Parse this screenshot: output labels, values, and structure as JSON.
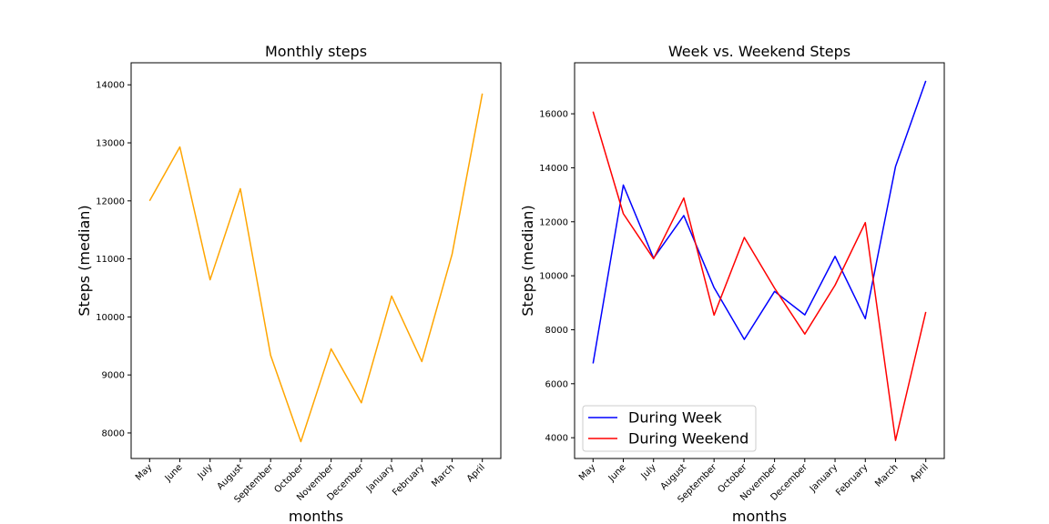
{
  "chart_data": [
    {
      "type": "line",
      "title": "Monthly steps",
      "xlabel": "months",
      "ylabel": "Steps (median)",
      "categories": [
        "May",
        "June",
        "July",
        "August",
        "September",
        "October",
        "November",
        "December",
        "January",
        "February",
        "March",
        "April"
      ],
      "series": [
        {
          "color": "#ffa500",
          "values": [
            12000,
            12930,
            10640,
            12210,
            9340,
            7850,
            9450,
            8520,
            10360,
            9230,
            11080,
            13850
          ]
        }
      ],
      "ylim": [
        7560,
        14380
      ],
      "yticks": [
        8000,
        9000,
        10000,
        11000,
        12000,
        13000,
        14000
      ],
      "grid": false
    },
    {
      "type": "line",
      "title": "Week vs. Weekend Steps",
      "xlabel": "months",
      "ylabel": "Steps (median)",
      "categories": [
        "May",
        "June",
        "July",
        "August",
        "September",
        "October",
        "November",
        "December",
        "January",
        "February",
        "March",
        "April"
      ],
      "series": [
        {
          "name": "During Week",
          "color": "#0000ff",
          "values": [
            6750,
            13360,
            10650,
            12230,
            9560,
            7640,
            9420,
            8550,
            10720,
            8410,
            14050,
            17220
          ]
        },
        {
          "name": "During Weekend",
          "color": "#ff0000",
          "values": [
            16080,
            12300,
            10630,
            12880,
            8540,
            11420,
            9540,
            7840,
            9650,
            11970,
            3900,
            8660
          ]
        }
      ],
      "ylim": [
        3230,
        17890
      ],
      "yticks": [
        4000,
        6000,
        8000,
        10000,
        12000,
        14000,
        16000
      ],
      "legend": "lower-left",
      "grid": false
    }
  ]
}
